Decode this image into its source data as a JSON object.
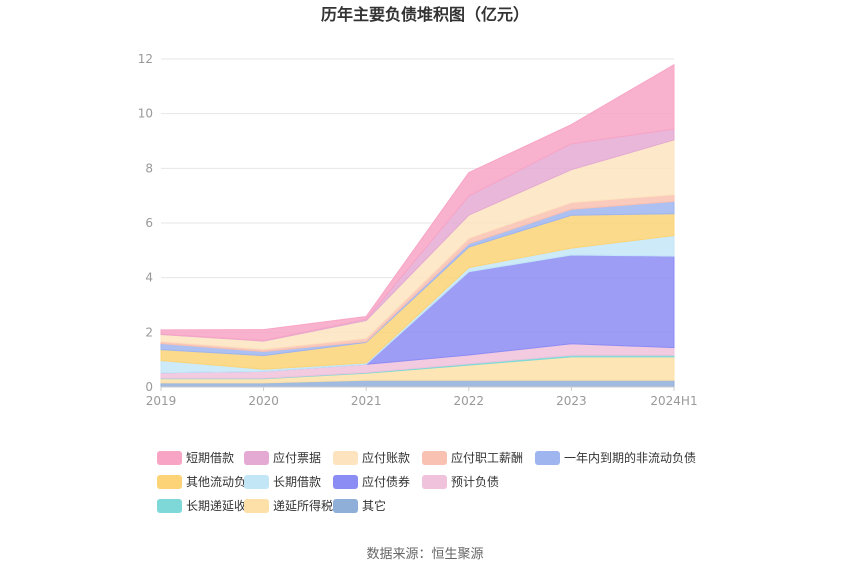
{
  "chart_data": {
    "type": "area",
    "title": "历年主要负债堆积图（亿元）",
    "categories": [
      "2019",
      "2020",
      "2021",
      "2022",
      "2023",
      "2024H1"
    ],
    "ylim": [
      0,
      12
    ],
    "yticks": [
      "0",
      "2",
      "4",
      "6",
      "8",
      "10",
      "12"
    ],
    "grid": true,
    "legend_position": "bottom",
    "series": [
      {
        "name": "其它",
        "color": "#8fafd9",
        "values": [
          0.15,
          0.15,
          0.25,
          0.25,
          0.25,
          0.25
        ]
      },
      {
        "name": "递延所得税负债",
        "color": "#fde0a8",
        "values": [
          0.15,
          0.15,
          0.25,
          0.55,
          0.85,
          0.85
        ]
      },
      {
        "name": "长期递延收益",
        "color": "#7fd8d8",
        "values": [
          0.02,
          0.02,
          0.03,
          0.05,
          0.06,
          0.06
        ]
      },
      {
        "name": "预计负债",
        "color": "#f0c2dc",
        "values": [
          0.2,
          0.25,
          0.3,
          0.32,
          0.42,
          0.28
        ]
      },
      {
        "name": "应付债券",
        "color": "#8c8cf5",
        "values": [
          0,
          0,
          0,
          3.05,
          3.25,
          3.35
        ]
      },
      {
        "name": "长期借款",
        "color": "#c3e6f7",
        "values": [
          0.45,
          0.08,
          0.05,
          0.15,
          0.25,
          0.75
        ]
      },
      {
        "name": "其他流动负债",
        "color": "#fcd477",
        "values": [
          0.4,
          0.5,
          0.75,
          0.75,
          1.2,
          0.8
        ]
      },
      {
        "name": "一年内到期的非流动负债",
        "color": "#9fb5f0",
        "values": [
          0.22,
          0.15,
          0.03,
          0.12,
          0.22,
          0.45
        ]
      },
      {
        "name": "应付职工薪酬",
        "color": "#f9c1b1",
        "values": [
          0.08,
          0.08,
          0.12,
          0.2,
          0.25,
          0.25
        ]
      },
      {
        "name": "应付账款",
        "color": "#fde4bf",
        "values": [
          0.25,
          0.3,
          0.65,
          0.85,
          1.2,
          2.0
        ]
      },
      {
        "name": "应付票据",
        "color": "#e4aad3",
        "values": [
          0.02,
          0.02,
          0.05,
          0.7,
          0.95,
          0.4
        ]
      },
      {
        "name": "短期借款",
        "color": "#f8a5c5",
        "values": [
          0.15,
          0.4,
          0.1,
          0.85,
          0.7,
          2.35
        ]
      }
    ],
    "legend_order": [
      "短期借款",
      "应付票据",
      "应付账款",
      "应付职工薪酬",
      "一年内到期的非流动负债",
      "其他流动负债",
      "长期借款",
      "应付债券",
      "预计负债",
      "长期递延收益",
      "递延所得税负债",
      "其它"
    ]
  },
  "source_text": "数据来源：恒生聚源"
}
